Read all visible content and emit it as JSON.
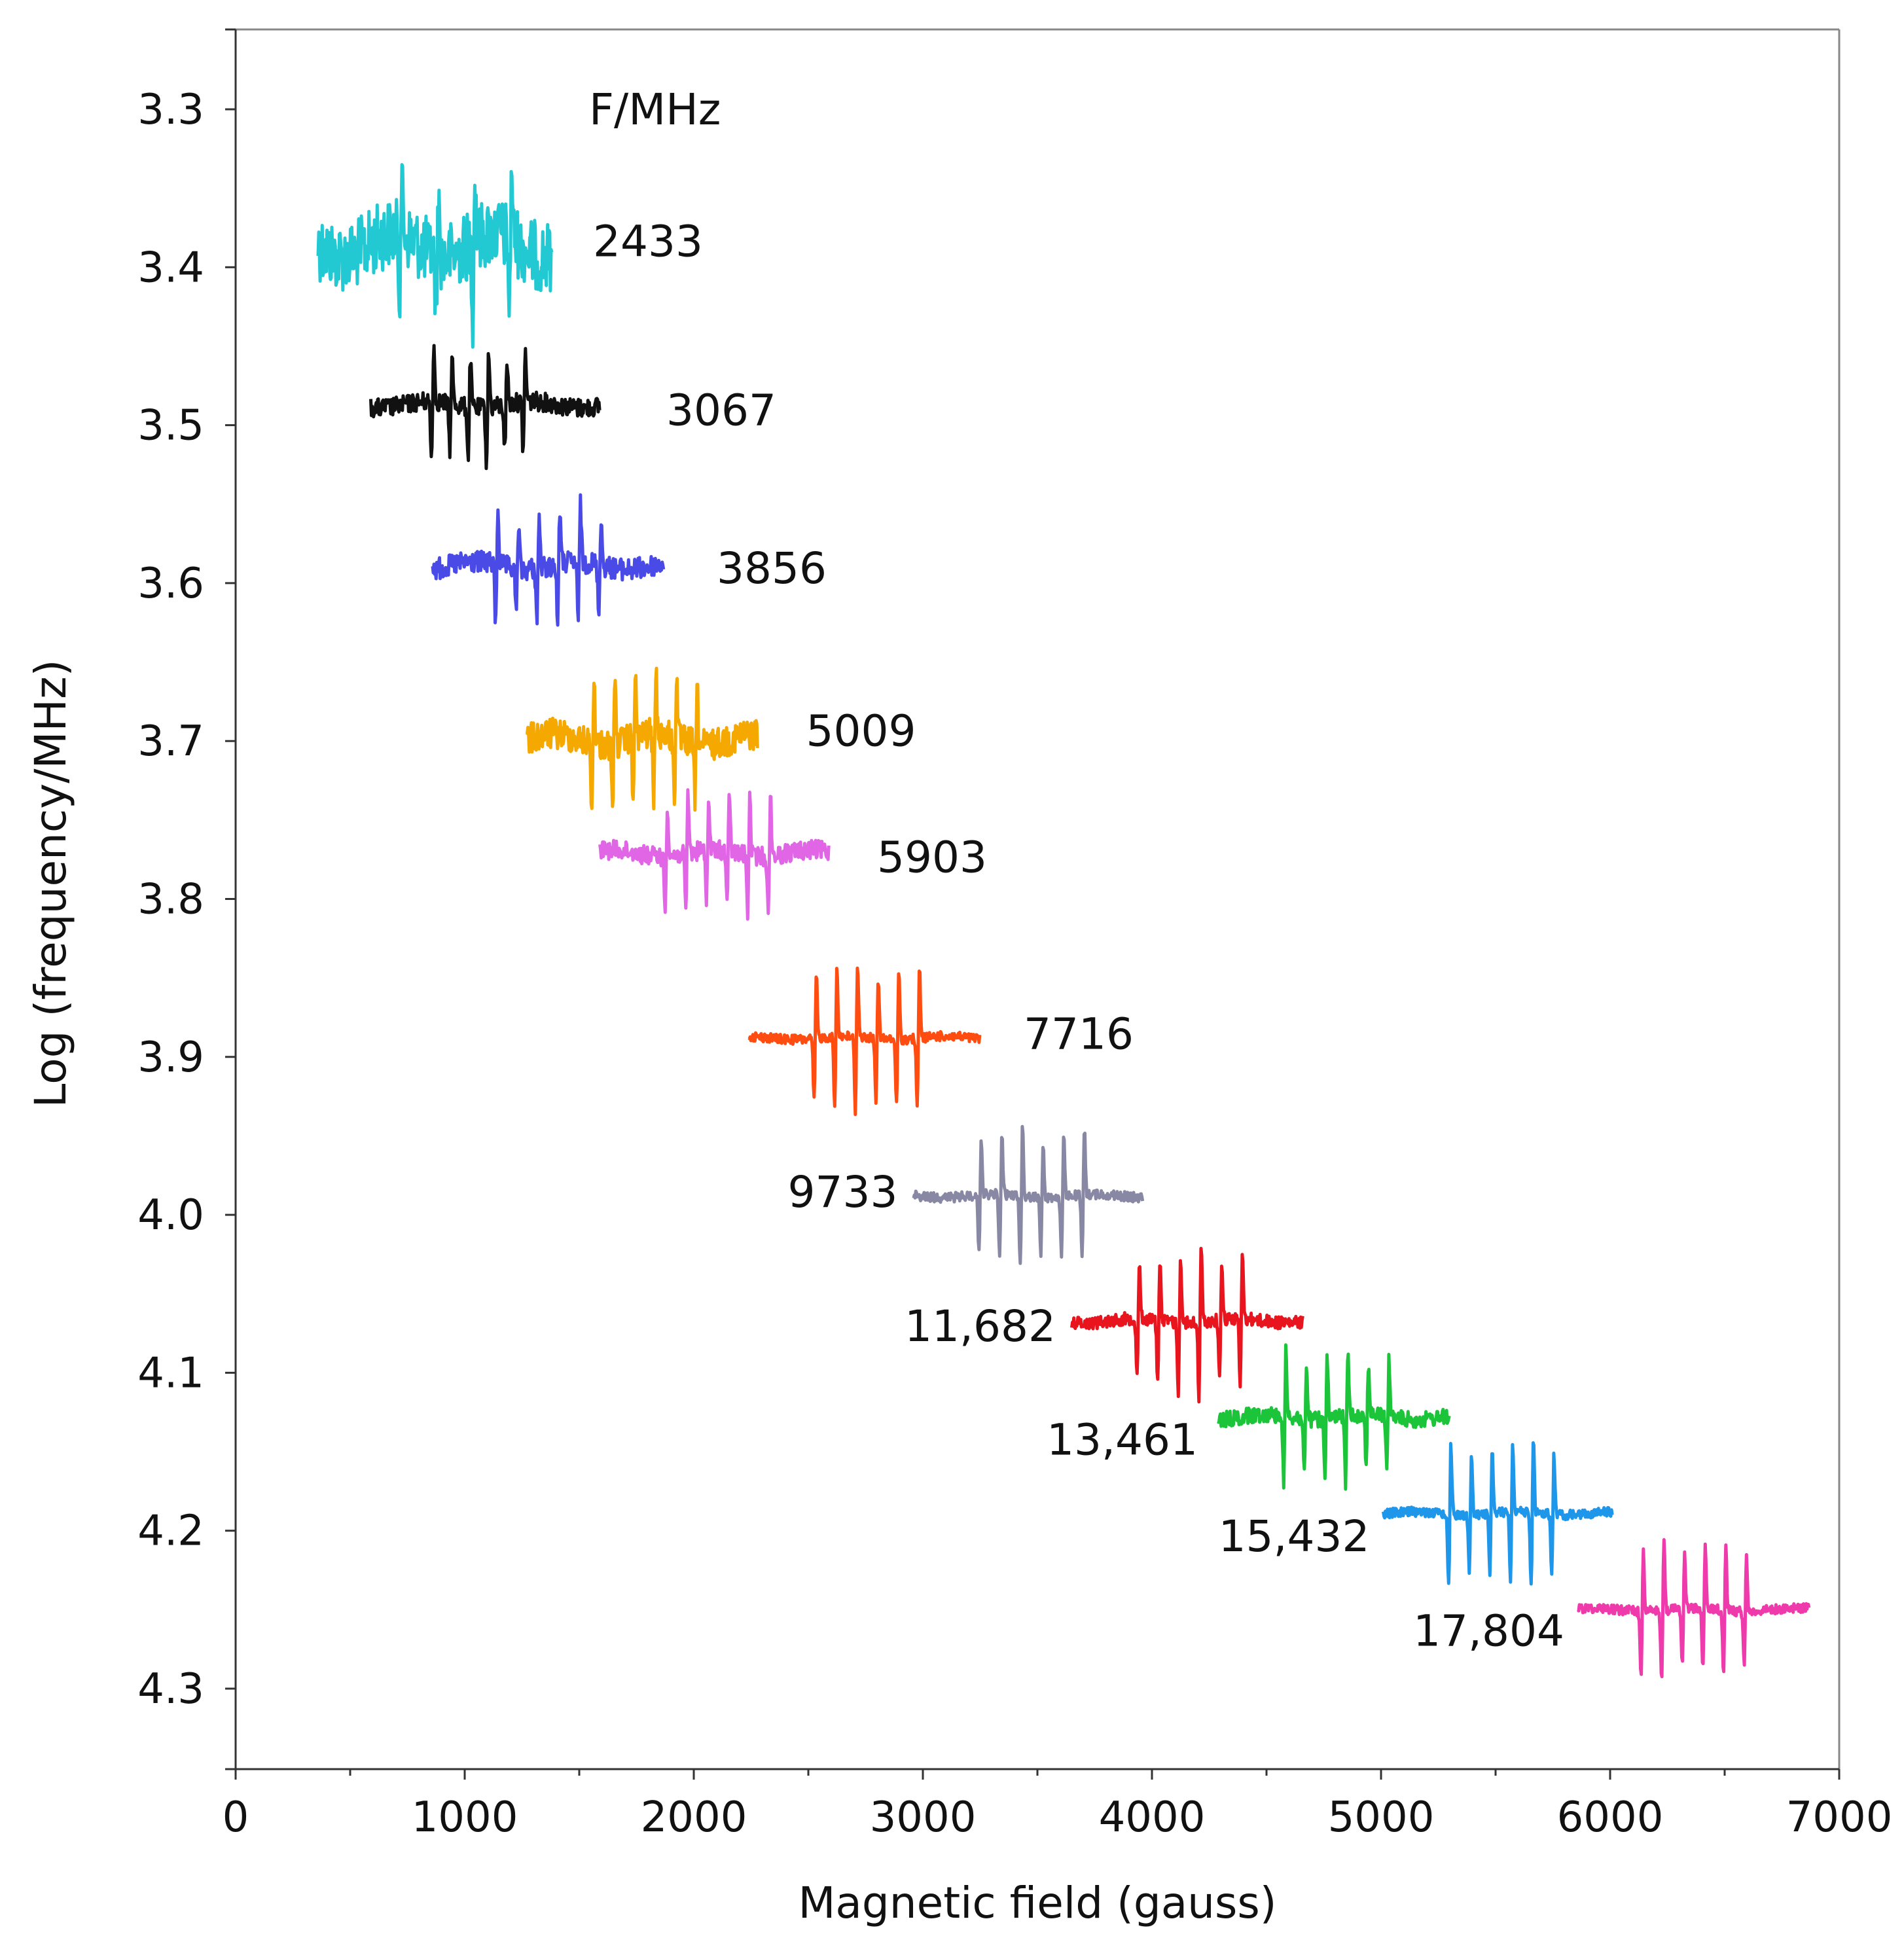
{
  "chart_data": {
    "type": "line",
    "title": "",
    "legend_title": "F/MHz",
    "xlabel": "Magnetic field (gauss)",
    "ylabel": "Log (frequency/MHz)",
    "xlim": [
      0,
      7000
    ],
    "ylim": [
      3.25,
      4.35
    ],
    "y_inverted": true,
    "grid": false,
    "x_ticks": [
      0,
      1000,
      2000,
      3000,
      4000,
      5000,
      6000,
      7000
    ],
    "x_tick_labels": [
      "0",
      "1000",
      "2000",
      "3000",
      "4000",
      "5000",
      "6000",
      "7000"
    ],
    "y_ticks": [
      3.3,
      3.4,
      3.5,
      3.6,
      3.7,
      3.8,
      3.9,
      4.0,
      4.1,
      4.2,
      4.3
    ],
    "y_tick_labels": [
      "3.3",
      "3.4",
      "3.5",
      "3.6",
      "3.7",
      "3.8",
      "3.9",
      "4.0",
      "4.1",
      "4.2",
      "4.3"
    ],
    "series": [
      {
        "name": "2433",
        "color": "#22c8d2",
        "baseline": 3.386,
        "x_range": [
          360,
          1380
        ],
        "line_centers": [
          720,
          880,
          1040,
          1200
        ],
        "amplitude": 0.045,
        "noise": 0.022,
        "label_x": 1560,
        "label_y": 3.383,
        "label_side": "right"
      },
      {
        "name": "3067",
        "color": "#111111",
        "baseline": 3.487,
        "x_range": [
          590,
          1590
        ],
        "line_centers": [
          860,
          940,
          1020,
          1100,
          1180,
          1260
        ],
        "amplitude": 0.034,
        "noise": 0.006,
        "label_x": 1880,
        "label_y": 3.49,
        "label_side": "right"
      },
      {
        "name": "3856",
        "color": "#4a4ae6",
        "baseline": 3.589,
        "x_range": [
          860,
          1870
        ],
        "line_centers": [
          1140,
          1230,
          1320,
          1410,
          1500,
          1590
        ],
        "amplitude": 0.036,
        "noise": 0.007,
        "label_x": 2100,
        "label_y": 3.59,
        "label_side": "right"
      },
      {
        "name": "5009",
        "color": "#f5a800",
        "baseline": 3.699,
        "x_range": [
          1270,
          2280
        ],
        "line_centers": [
          1560,
          1650,
          1740,
          1830,
          1920,
          2010
        ],
        "amplitude": 0.04,
        "noise": 0.01,
        "label_x": 2490,
        "label_y": 3.693,
        "label_side": "right"
      },
      {
        "name": "5903",
        "color": "#e066e6",
        "baseline": 3.771,
        "x_range": [
          1590,
          2590
        ],
        "line_centers": [
          1880,
          1970,
          2060,
          2150,
          2240,
          2330
        ],
        "amplitude": 0.036,
        "noise": 0.006,
        "label_x": 2800,
        "label_y": 3.773,
        "label_side": "right"
      },
      {
        "name": "7716",
        "color": "#ff4d12",
        "baseline": 3.888,
        "x_range": [
          2240,
          3250
        ],
        "line_centers": [
          2530,
          2620,
          2710,
          2800,
          2890,
          2980
        ],
        "amplitude": 0.044,
        "noise": 0.003,
        "label_x": 3440,
        "label_y": 3.885,
        "label_side": "right"
      },
      {
        "name": "9733",
        "color": "#8888a4",
        "baseline": 3.988,
        "x_range": [
          2960,
          3960
        ],
        "line_centers": [
          3250,
          3340,
          3430,
          3520,
          3610,
          3700
        ],
        "amplitude": 0.042,
        "noise": 0.003,
        "label_x": 2890,
        "label_y": 3.985,
        "label_side": "left"
      },
      {
        "name": "11,682",
        "color": "#e8141e",
        "baseline": 4.067,
        "x_range": [
          3650,
          4660
        ],
        "line_centers": [
          3940,
          4030,
          4120,
          4210,
          4300,
          4390
        ],
        "amplitude": 0.044,
        "noise": 0.004,
        "label_x": 3580,
        "label_y": 4.07,
        "label_side": "left"
      },
      {
        "name": "13,461",
        "color": "#1cc43a",
        "baseline": 4.128,
        "x_range": [
          4290,
          5300
        ],
        "line_centers": [
          4580,
          4670,
          4760,
          4850,
          4940,
          5030
        ],
        "amplitude": 0.04,
        "noise": 0.005,
        "label_x": 4200,
        "label_y": 4.142,
        "label_side": "left"
      },
      {
        "name": "15,432",
        "color": "#1e96ea",
        "baseline": 4.189,
        "x_range": [
          5010,
          6010
        ],
        "line_centers": [
          5300,
          5390,
          5480,
          5570,
          5660,
          5750
        ],
        "amplitude": 0.044,
        "noise": 0.003,
        "label_x": 4950,
        "label_y": 4.203,
        "label_side": "left"
      },
      {
        "name": "17,804",
        "color": "#ee3aaa",
        "baseline": 4.25,
        "x_range": [
          5860,
          6870
        ],
        "line_centers": [
          6140,
          6230,
          6320,
          6410,
          6500,
          6590
        ],
        "amplitude": 0.04,
        "noise": 0.003,
        "label_x": 5800,
        "label_y": 4.263,
        "label_side": "left"
      }
    ]
  }
}
